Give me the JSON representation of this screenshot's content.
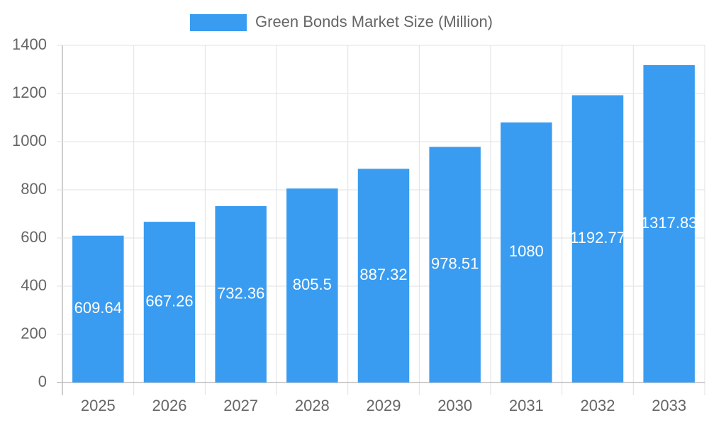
{
  "chart_data": {
    "type": "bar",
    "legend": "Green Bonds Market Size (Million)",
    "categories": [
      "2025",
      "2026",
      "2027",
      "2028",
      "2029",
      "2030",
      "2031",
      "2032",
      "2033"
    ],
    "values": [
      609.64,
      667.26,
      732.36,
      805.5,
      887.32,
      978.51,
      1080,
      1192.77,
      1317.83
    ],
    "color": "#399cf0",
    "ylim": [
      0,
      1400
    ],
    "yticks": [
      0,
      200,
      400,
      600,
      800,
      1000,
      1200,
      1400
    ],
    "grid": true
  }
}
